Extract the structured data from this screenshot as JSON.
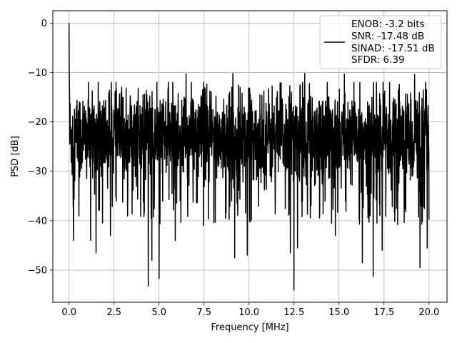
{
  "chart_data": {
    "type": "line",
    "title": "",
    "xlabel": "Frequency [MHz]",
    "ylabel": "PSD [dB]",
    "xlim": [
      -0.9,
      21.0
    ],
    "ylim": [
      -56.5,
      2.5
    ],
    "xticks": [
      0.0,
      2.5,
      5.0,
      7.5,
      10.0,
      12.5,
      15.0,
      17.5,
      20.0
    ],
    "xtick_labels": [
      "0.0",
      "2.5",
      "5.0",
      "7.5",
      "10.0",
      "12.5",
      "15.0",
      "17.5",
      "20.0"
    ],
    "yticks": [
      0,
      -10,
      -20,
      -30,
      -40,
      -50
    ],
    "ytick_labels": [
      "0",
      "−10",
      "−20",
      "−30",
      "−40",
      "−50"
    ],
    "grid": true,
    "legend_position": "top-right",
    "legend_lines": [
      "ENOB: -3.2 bits",
      "SNR: -17.48 dB",
      "SINAD: -17.51 dB",
      "SFDR: 6.39"
    ],
    "line_color": "#000000",
    "series": [
      {
        "description": "Noise-like PSD spanning 0 to 20 MHz, peak 0 dB at DC, floor between about -12 and -35 dB with deep nulls down to about -54 dB",
        "x_range": [
          0.0,
          20.0
        ],
        "points": 2000,
        "peak": {
          "x": 0.0,
          "y": 0.0
        },
        "floor_band": [
          -35,
          -12
        ],
        "upper_spikes": [
          {
            "x": 6.5,
            "y": -10.3
          },
          {
            "x": 9.1,
            "y": -10.2
          },
          {
            "x": 13.1,
            "y": -10.2
          },
          {
            "x": 15.3,
            "y": -10.3
          },
          {
            "x": 19.2,
            "y": -10.4
          }
        ],
        "lower_spikes": [
          {
            "x": 0.25,
            "y": -44.0
          },
          {
            "x": 1.2,
            "y": -44.0
          },
          {
            "x": 1.5,
            "y": -46.5
          },
          {
            "x": 2.3,
            "y": -43.0
          },
          {
            "x": 4.4,
            "y": -53.2
          },
          {
            "x": 4.6,
            "y": -48.0
          },
          {
            "x": 5.0,
            "y": -51.7
          },
          {
            "x": 5.9,
            "y": -44.0
          },
          {
            "x": 9.2,
            "y": -47.5
          },
          {
            "x": 9.9,
            "y": -47.0
          },
          {
            "x": 12.3,
            "y": -46.5
          },
          {
            "x": 12.5,
            "y": -54.0
          },
          {
            "x": 12.7,
            "y": -45.5
          },
          {
            "x": 14.8,
            "y": -43.0
          },
          {
            "x": 16.3,
            "y": -48.5
          },
          {
            "x": 16.9,
            "y": -51.3
          },
          {
            "x": 17.4,
            "y": -46.0
          },
          {
            "x": 19.5,
            "y": -49.5
          },
          {
            "x": 19.9,
            "y": -45.5
          }
        ]
      }
    ]
  }
}
